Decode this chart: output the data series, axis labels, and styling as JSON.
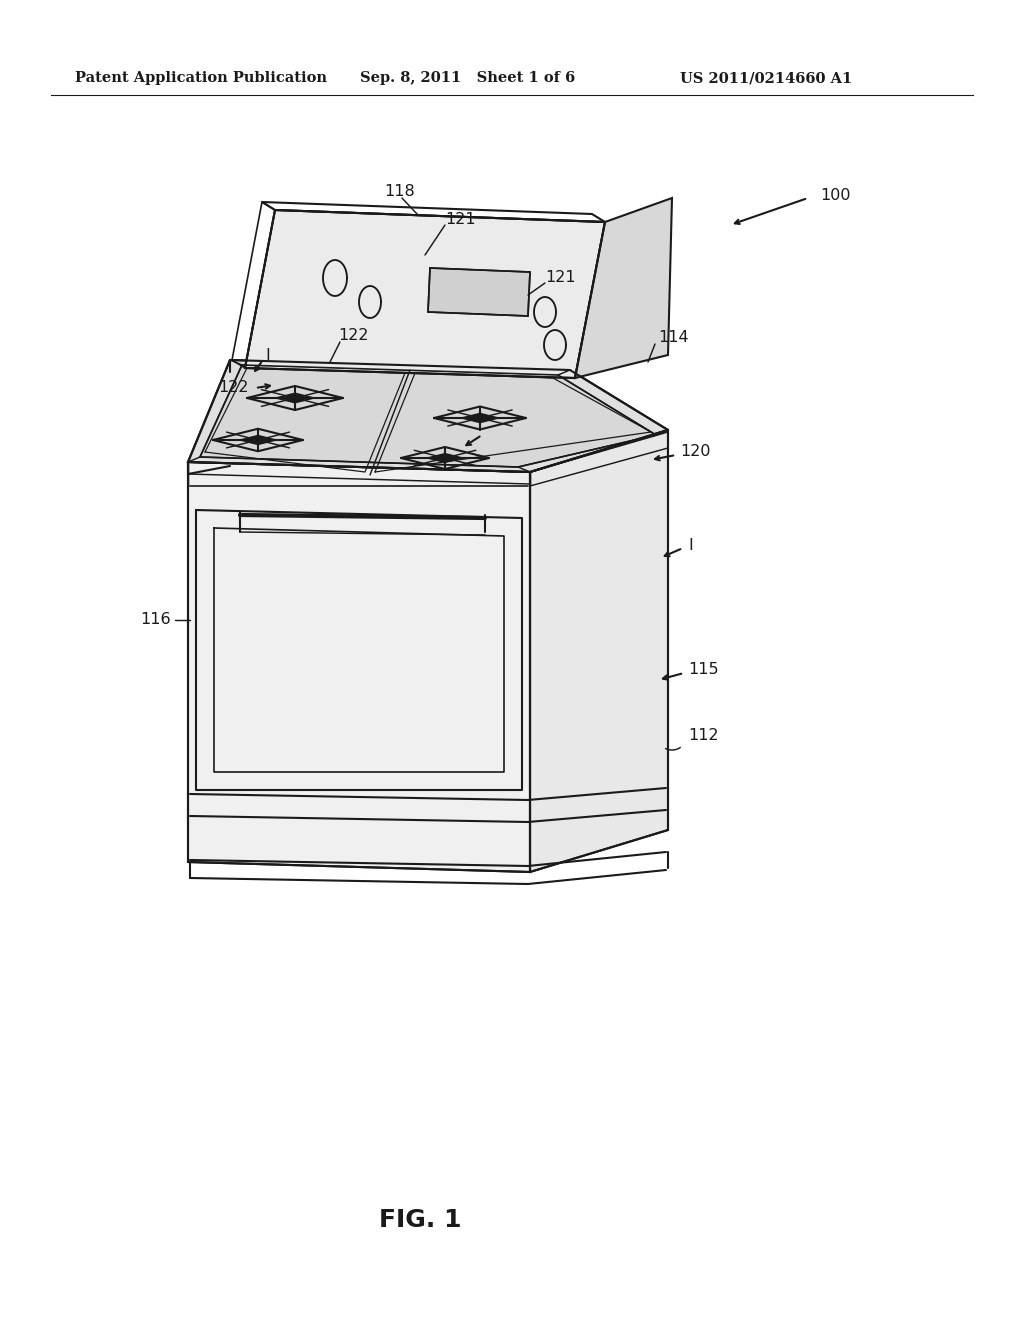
{
  "background_color": "#ffffff",
  "header_left": "Patent Application Publication",
  "header_mid": "Sep. 8, 2011   Sheet 1 of 6",
  "header_right": "US 2011/0214660 A1",
  "figure_label": "FIG. 1",
  "line_color": "#1a1a1a",
  "line_width": 1.5
}
